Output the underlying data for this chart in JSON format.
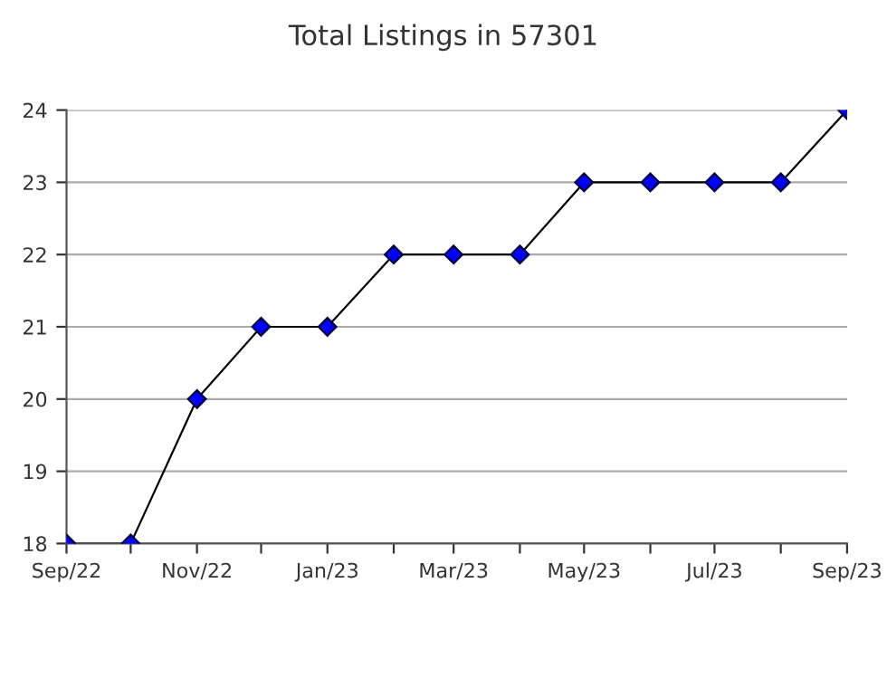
{
  "chart_data": {
    "type": "line",
    "title": "Total Listings in 57301",
    "x": [
      "2022-09",
      "2022-10",
      "2022-11",
      "2022-12",
      "2023-01",
      "2023-02",
      "2023-03",
      "2023-04",
      "2023-05",
      "2023-06",
      "2023-07",
      "2023-08",
      "2023-09"
    ],
    "series": [
      {
        "color": "#0000ff",
        "values": [
          18,
          18,
          20,
          21,
          21,
          22,
          22,
          22,
          23,
          23,
          23,
          23,
          24
        ]
      }
    ],
    "xlim": [
      "2022-09",
      "2023-09"
    ],
    "xticks": [
      {
        "value": "2022-09",
        "label": "Sep/22"
      },
      {
        "value": "2022-10",
        "label": null
      },
      {
        "value": "2022-11",
        "label": "Nov/22"
      },
      {
        "value": "2022-12",
        "label": null
      },
      {
        "value": "2023-01",
        "label": "Jan/23"
      },
      {
        "value": "2023-02",
        "label": null
      },
      {
        "value": "2023-03",
        "label": "Mar/23"
      },
      {
        "value": "2023-04",
        "label": null
      },
      {
        "value": "2023-05",
        "label": "May/23"
      },
      {
        "value": "2023-06",
        "label": null
      },
      {
        "value": "2023-07",
        "label": "Jul/23"
      },
      {
        "value": "2023-08",
        "label": null
      },
      {
        "value": "2023-09",
        "label": "Sep/23"
      }
    ],
    "ylim": [
      18,
      24
    ],
    "yticks": [
      18,
      19,
      20,
      21,
      22,
      23,
      24
    ],
    "grid": "y",
    "marker": "diamond",
    "line_style": "solid",
    "legend": false
  }
}
